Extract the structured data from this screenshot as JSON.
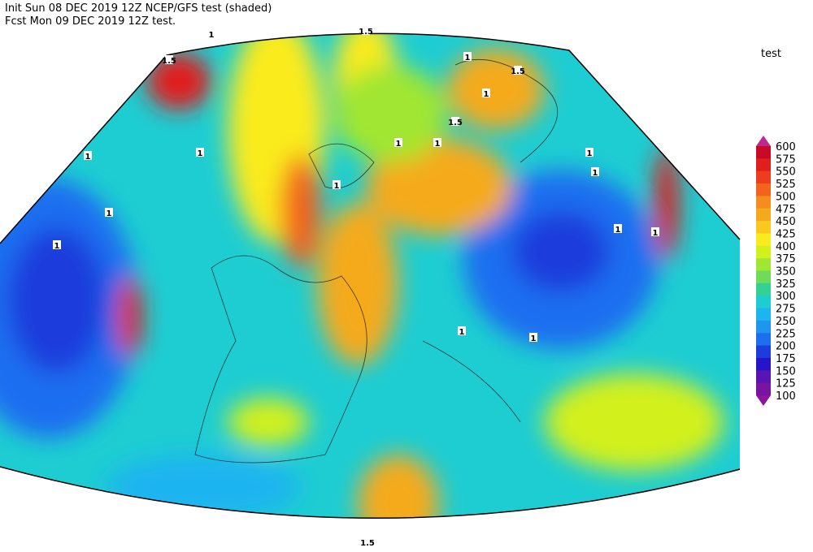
{
  "header": {
    "line1": "Init  Sun 08 DEC 2019 12Z  NCEP/GFS test (shaded)",
    "line2": "Fcst Mon 09 DEC 2019 12Z  test."
  },
  "legend": {
    "title": "test",
    "levels": [
      600,
      575,
      550,
      525,
      500,
      475,
      450,
      425,
      400,
      375,
      350,
      325,
      300,
      275,
      250,
      225,
      200,
      175,
      150,
      125,
      100
    ],
    "colors": [
      "#c02890",
      "#c80a28",
      "#e01e1e",
      "#ee3c1e",
      "#f2641e",
      "#f58c1e",
      "#f5aa1e",
      "#fac81e",
      "#faeb1e",
      "#d2f01e",
      "#a0e632",
      "#6edc5a",
      "#32d296",
      "#1ecdd2",
      "#1eb4f0",
      "#1e96f0",
      "#1e6ef0",
      "#1e3cdc",
      "#2814c8",
      "#5a14b4",
      "#7814a0",
      "#8c14a0"
    ]
  },
  "contour_labels": [
    "1.5",
    "1",
    "1.5",
    "1",
    "1.5",
    "1",
    "1.5",
    "1",
    "1",
    "1",
    "1",
    "1",
    "1",
    "1",
    "1",
    "1",
    "1",
    "1",
    "1",
    "1",
    "1.5"
  ]
}
